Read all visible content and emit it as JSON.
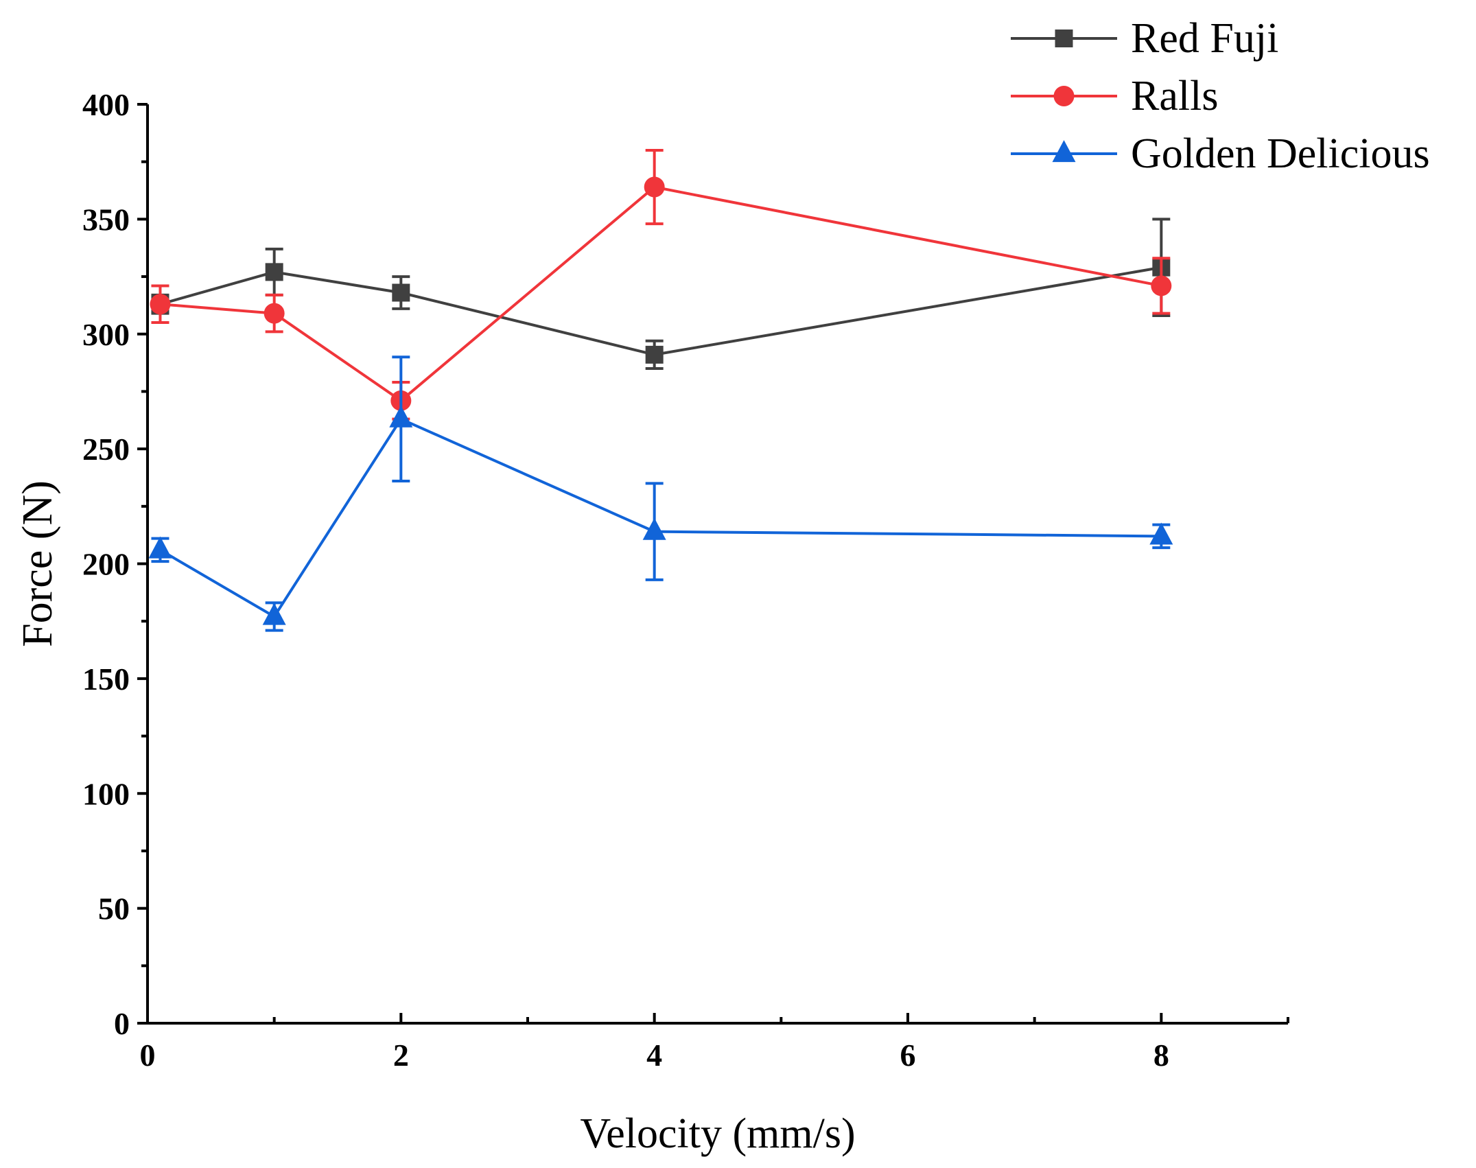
{
  "chart_data": {
    "type": "line",
    "title": "",
    "xlabel": "Velocity (mm/s)",
    "ylabel": "Force (N)",
    "xlim": [
      0,
      9
    ],
    "ylim": [
      0,
      400
    ],
    "x_ticks": [
      0,
      2,
      4,
      6,
      8
    ],
    "x_tick_labels": [
      "0",
      "2",
      "4",
      "6",
      "8"
    ],
    "y_ticks": [
      0,
      50,
      100,
      150,
      200,
      250,
      300,
      350,
      400
    ],
    "y_tick_labels": [
      "0",
      "50",
      "100",
      "150",
      "200",
      "250",
      "300",
      "350",
      "400"
    ],
    "grid": false,
    "legend_position": "top-right",
    "series": [
      {
        "name": "Red Fuji",
        "color": "#404040",
        "marker": "square",
        "x": [
          0.1,
          1,
          2,
          4,
          8
        ],
        "values": [
          313,
          327,
          318,
          291,
          329
        ],
        "errors": [
          4,
          10,
          7,
          6,
          21
        ]
      },
      {
        "name": "Ralls",
        "color": "#f0353a",
        "marker": "circle",
        "x": [
          0.1,
          1,
          2,
          4,
          8
        ],
        "values": [
          313,
          309,
          271,
          364,
          321
        ],
        "errors": [
          8,
          8,
          8,
          16,
          12
        ]
      },
      {
        "name": "Golden Delicious",
        "color": "#1164d8",
        "marker": "triangle",
        "x": [
          0.1,
          1,
          2,
          4,
          8
        ],
        "values": [
          206,
          177,
          263,
          214,
          212
        ],
        "errors": [
          5,
          6,
          27,
          21,
          5
        ]
      }
    ]
  }
}
